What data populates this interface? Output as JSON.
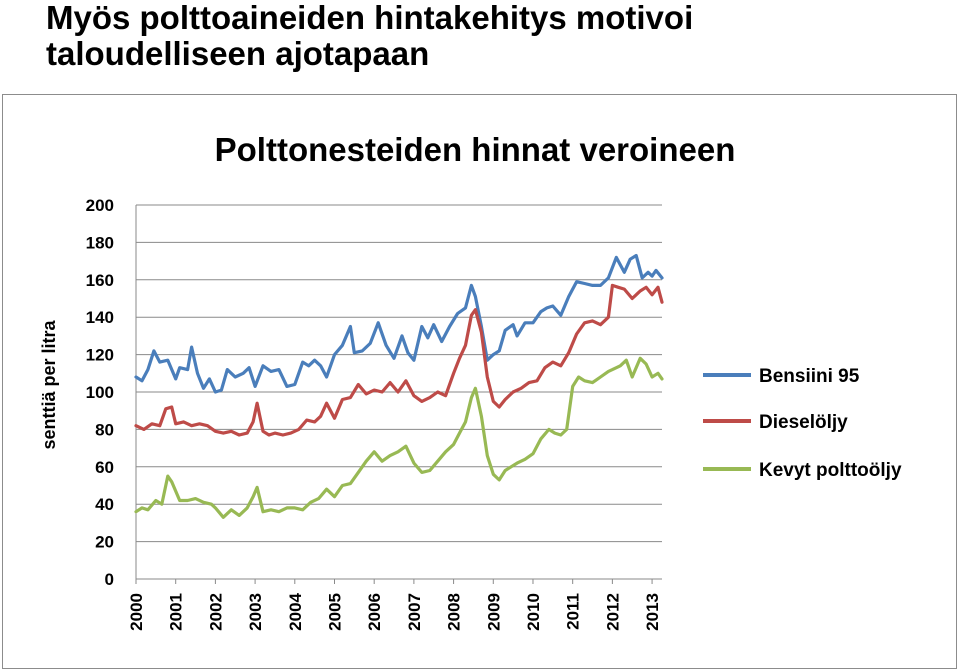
{
  "slide": {
    "title_line1": "Myös polttoaineiden hintakehitys motivoi",
    "title_line2": "taloudelliseen ajotapaan"
  },
  "chart_data": {
    "type": "line",
    "title": "Polttonesteiden hinnat veroineen",
    "xlabel": "",
    "ylabel": "senttiä per litra",
    "ylim": [
      0,
      200
    ],
    "xlim": [
      2000,
      2013.25
    ],
    "yticks": [
      0,
      20,
      40,
      60,
      80,
      100,
      120,
      140,
      160,
      180,
      200
    ],
    "xticks": [
      "2000",
      "2001",
      "2002",
      "2003",
      "2004",
      "2005",
      "2006",
      "2007",
      "2008",
      "2009",
      "2010",
      "2011",
      "2012",
      "2013"
    ],
    "grid": true,
    "legend_position": "right",
    "series": [
      {
        "name": "Bensiini 95",
        "color": "#4a7ebb",
        "x": [
          2000.0,
          2000.15,
          2000.3,
          2000.45,
          2000.6,
          2000.8,
          2001.0,
          2001.1,
          2001.3,
          2001.4,
          2001.55,
          2001.7,
          2001.85,
          2002.0,
          2002.15,
          2002.3,
          2002.5,
          2002.7,
          2002.85,
          2003.0,
          2003.2,
          2003.4,
          2003.6,
          2003.8,
          2004.0,
          2004.2,
          2004.35,
          2004.5,
          2004.65,
          2004.8,
          2005.0,
          2005.2,
          2005.4,
          2005.5,
          2005.7,
          2005.9,
          2006.1,
          2006.3,
          2006.5,
          2006.7,
          2006.85,
          2007.0,
          2007.2,
          2007.35,
          2007.5,
          2007.7,
          2007.9,
          2008.1,
          2008.3,
          2008.45,
          2008.55,
          2008.7,
          2008.85,
          2009.0,
          2009.15,
          2009.3,
          2009.5,
          2009.6,
          2009.8,
          2010.0,
          2010.2,
          2010.35,
          2010.5,
          2010.7,
          2010.9,
          2011.1,
          2011.3,
          2011.5,
          2011.7,
          2011.9,
          2012.1,
          2012.3,
          2012.45,
          2012.6,
          2012.75,
          2012.9,
          2013.0,
          2013.1,
          2013.25
        ],
        "values": [
          108,
          106,
          112,
          122,
          116,
          117,
          107,
          113,
          112,
          124,
          110,
          102,
          107,
          100,
          101,
          112,
          108,
          110,
          113,
          103,
          114,
          111,
          112,
          103,
          104,
          116,
          114,
          117,
          114,
          108,
          120,
          125,
          135,
          121,
          122,
          126,
          137,
          125,
          118,
          130,
          121,
          117,
          135,
          129,
          136,
          127,
          135,
          142,
          145,
          157,
          151,
          135,
          117,
          120,
          122,
          133,
          136,
          130,
          137,
          137,
          143,
          145,
          146,
          141,
          151,
          159,
          158,
          157,
          157,
          161,
          172,
          164,
          171,
          173,
          161,
          164,
          162,
          165,
          161
        ]
      },
      {
        "name": "Dieselöljy",
        "color": "#be4b48",
        "x": [
          2000.0,
          2000.2,
          2000.4,
          2000.6,
          2000.75,
          2000.9,
          2001.0,
          2001.2,
          2001.4,
          2001.6,
          2001.8,
          2002.0,
          2002.2,
          2002.4,
          2002.6,
          2002.8,
          2002.95,
          2003.05,
          2003.2,
          2003.35,
          2003.5,
          2003.7,
          2003.9,
          2004.1,
          2004.3,
          2004.5,
          2004.65,
          2004.8,
          2005.0,
          2005.2,
          2005.4,
          2005.6,
          2005.8,
          2006.0,
          2006.2,
          2006.4,
          2006.6,
          2006.8,
          2007.0,
          2007.2,
          2007.4,
          2007.6,
          2007.8,
          2008.0,
          2008.15,
          2008.3,
          2008.45,
          2008.55,
          2008.7,
          2008.85,
          2009.0,
          2009.15,
          2009.3,
          2009.5,
          2009.7,
          2009.9,
          2010.1,
          2010.3,
          2010.5,
          2010.7,
          2010.9,
          2011.1,
          2011.3,
          2011.5,
          2011.7,
          2011.9,
          2012.0,
          2012.15,
          2012.3,
          2012.5,
          2012.7,
          2012.85,
          2013.0,
          2013.15,
          2013.25
        ],
        "values": [
          82,
          80,
          83,
          82,
          91,
          92,
          83,
          84,
          82,
          83,
          82,
          79,
          78,
          79,
          77,
          78,
          84,
          94,
          79,
          77,
          78,
          77,
          78,
          80,
          85,
          84,
          87,
          94,
          86,
          96,
          97,
          104,
          99,
          101,
          100,
          105,
          100,
          106,
          98,
          95,
          97,
          100,
          98,
          110,
          118,
          125,
          141,
          144,
          132,
          108,
          95,
          92,
          96,
          100,
          102,
          105,
          106,
          113,
          116,
          114,
          121,
          131,
          137,
          138,
          136,
          140,
          157,
          156,
          155,
          150,
          154,
          156,
          152,
          156,
          148
        ]
      },
      {
        "name": "Kevyt polttoöljy",
        "color": "#98b954",
        "x": [
          2000.0,
          2000.15,
          2000.3,
          2000.5,
          2000.65,
          2000.8,
          2000.9,
          2001.1,
          2001.3,
          2001.5,
          2001.7,
          2001.9,
          2002.0,
          2002.2,
          2002.4,
          2002.6,
          2002.8,
          2002.95,
          2003.05,
          2003.2,
          2003.4,
          2003.6,
          2003.8,
          2004.0,
          2004.2,
          2004.4,
          2004.6,
          2004.8,
          2005.0,
          2005.2,
          2005.4,
          2005.6,
          2005.8,
          2006.0,
          2006.2,
          2006.4,
          2006.6,
          2006.8,
          2007.0,
          2007.2,
          2007.4,
          2007.6,
          2007.8,
          2008.0,
          2008.15,
          2008.3,
          2008.45,
          2008.55,
          2008.7,
          2008.85,
          2009.0,
          2009.15,
          2009.3,
          2009.45,
          2009.6,
          2009.8,
          2010.0,
          2010.2,
          2010.4,
          2010.55,
          2010.7,
          2010.85,
          2011.0,
          2011.15,
          2011.3,
          2011.5,
          2011.7,
          2011.9,
          2012.0,
          2012.2,
          2012.35,
          2012.5,
          2012.7,
          2012.85,
          2013.0,
          2013.15,
          2013.25
        ],
        "values": [
          36,
          38,
          37,
          42,
          40,
          55,
          52,
          42,
          42,
          43,
          41,
          40,
          38,
          33,
          37,
          34,
          38,
          44,
          49,
          36,
          37,
          36,
          38,
          38,
          37,
          41,
          43,
          48,
          44,
          50,
          51,
          57,
          63,
          68,
          63,
          66,
          68,
          71,
          62,
          57,
          58,
          63,
          68,
          72,
          78,
          84,
          97,
          102,
          87,
          66,
          56,
          53,
          58,
          60,
          62,
          64,
          67,
          75,
          80,
          78,
          77,
          80,
          103,
          108,
          106,
          105,
          108,
          111,
          112,
          114,
          117,
          108,
          118,
          115,
          108,
          110,
          107
        ]
      }
    ]
  }
}
